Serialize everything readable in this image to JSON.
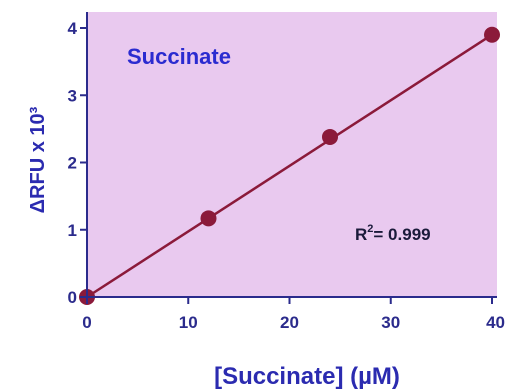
{
  "chart_data": {
    "type": "scatter",
    "title": "Succinate",
    "xlabel": "[Succinate] (µM)",
    "ylabel": "ΔRFU x 10³",
    "x_ticks": [
      "0",
      "10",
      "20",
      "30",
      "40"
    ],
    "y_ticks": [
      "0",
      "1",
      "2",
      "3",
      "4"
    ],
    "xlim": [
      0,
      40
    ],
    "ylim": [
      0,
      4.1
    ],
    "grid": false,
    "series": [
      {
        "x": [
          0,
          12,
          24,
          40
        ],
        "y": [
          0,
          1.17,
          2.38,
          3.9
        ]
      }
    ],
    "fit_line": {
      "x": [
        0,
        40
      ],
      "y": [
        0,
        3.9
      ]
    },
    "annotation": {
      "r2_prefix": "R",
      "r2_sup": "2",
      "r2_value": "= 0.999"
    },
    "colors": {
      "plot_bg": "#e9c9ef",
      "axis": "#2b2b8c",
      "line": "#8b1a3a",
      "marker": "#8b1a3a",
      "title": "#2b2bd0"
    }
  }
}
